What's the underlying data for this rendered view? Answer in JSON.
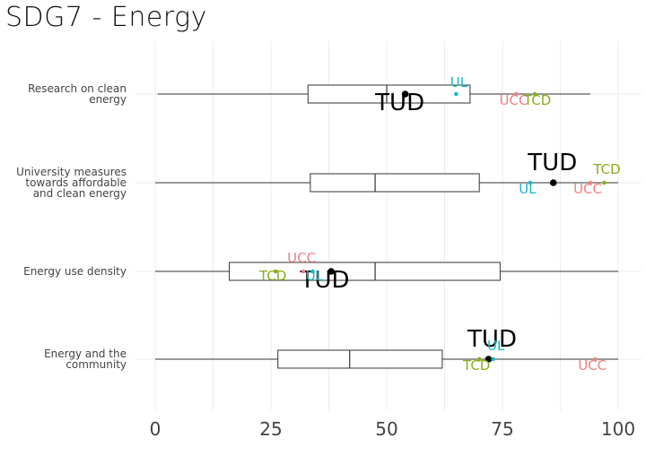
{
  "chart_data": {
    "type": "boxplot",
    "title": "SDG7 - Energy",
    "xlabel": "",
    "ylabel": "",
    "xlim": [
      0,
      100
    ],
    "x_ticks": [
      0,
      25,
      50,
      75,
      100
    ],
    "grid": true,
    "categories": [
      {
        "label": [
          "Research on clean",
          "energy"
        ],
        "box": {
          "min": 0.5,
          "q1": 33,
          "median": 50,
          "q3": 68,
          "max": 94
        },
        "points": [
          {
            "name": "TUD",
            "value": 54,
            "label_dx": -6,
            "label_dy": 18
          },
          {
            "name": "UL",
            "value": 65,
            "label_dx": 3,
            "label_dy": -8
          },
          {
            "name": "UCC",
            "value": 78,
            "label_dx": -3,
            "label_dy": 12
          },
          {
            "name": "TCD",
            "value": 82,
            "label_dx": 3,
            "label_dy": 12
          }
        ]
      },
      {
        "label": [
          "University measures",
          "towards affordable",
          "and clean energy"
        ],
        "box": {
          "min": 0,
          "q1": 33.5,
          "median": 47.5,
          "q3": 70,
          "max": 100
        },
        "points": [
          {
            "name": "TUD",
            "value": 86,
            "label_dx": -1,
            "label_dy": -14
          },
          {
            "name": "UL",
            "value": 81,
            "label_dx": -3,
            "label_dy": 12
          },
          {
            "name": "UCC",
            "value": 94,
            "label_dx": -3,
            "label_dy": 12
          },
          {
            "name": "TCD",
            "value": 97,
            "label_dx": 3,
            "label_dy": -10
          }
        ]
      },
      {
        "label": [
          "Energy use density"
        ],
        "box": {
          "min": 0,
          "q1": 16,
          "median": 47.5,
          "q3": 74.5,
          "max": 100
        },
        "points": [
          {
            "name": "TUD",
            "value": 38,
            "label_dx": -7,
            "label_dy": 18
          },
          {
            "name": "UL",
            "value": 34,
            "label_dx": 2,
            "label_dy": 10
          },
          {
            "name": "UCC",
            "value": 32,
            "label_dx": -2,
            "label_dy": -10
          },
          {
            "name": "TCD",
            "value": 26,
            "label_dx": -3,
            "label_dy": 10
          }
        ]
      },
      {
        "label": [
          "Energy and the",
          "community"
        ],
        "box": {
          "min": 0,
          "q1": 26.5,
          "median": 42,
          "q3": 62,
          "max": 100
        },
        "points": [
          {
            "name": "TUD",
            "value": 72,
            "label_dx": 4,
            "label_dy": -14
          },
          {
            "name": "UL",
            "value": 73,
            "label_dx": 3,
            "label_dy": -10
          },
          {
            "name": "TCD",
            "value": 70,
            "label_dx": -3,
            "label_dy": 12
          },
          {
            "name": "UCC",
            "value": 95,
            "label_dx": -3,
            "label_dy": 12
          }
        ]
      }
    ],
    "colors": {
      "TUD": "#000000",
      "UL": "#17b8c4",
      "UCC": "#f08080",
      "TCD": "#8aad1a"
    }
  }
}
